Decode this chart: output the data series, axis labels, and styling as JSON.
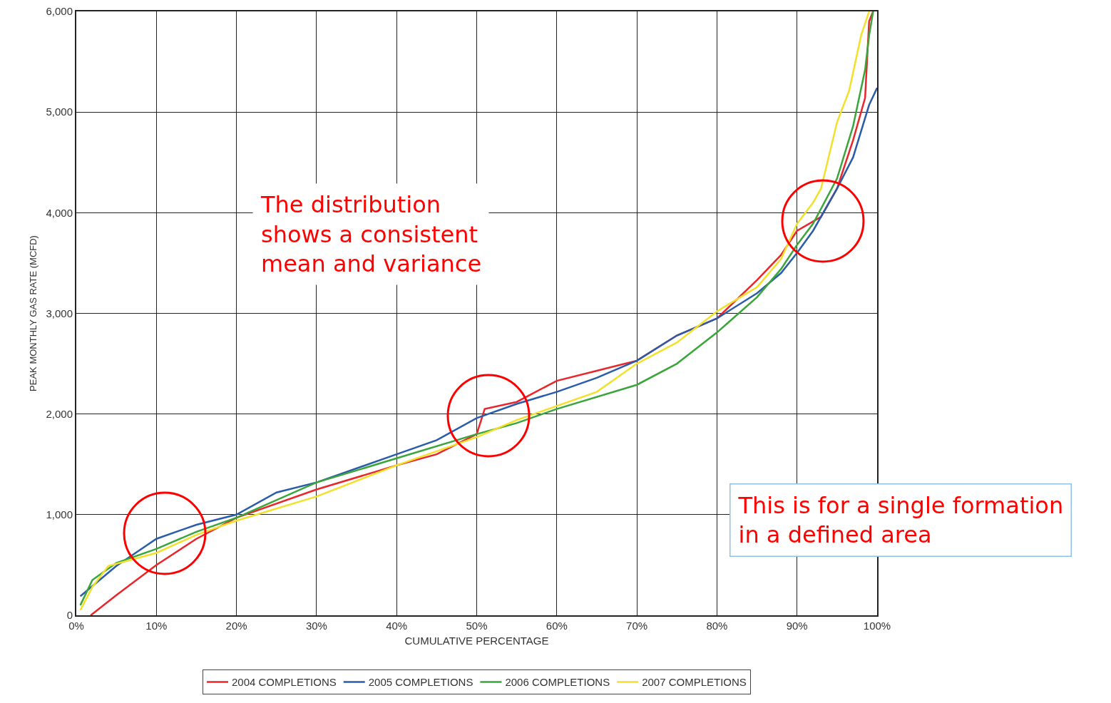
{
  "chart_data": {
    "type": "line",
    "xlabel": "CUMULATIVE PERCENTAGE",
    "ylabel": "PEAK MONTHLY GAS RATE (MCFD)",
    "xlim": [
      0,
      100
    ],
    "xticks": [
      {
        "value": 0,
        "label": "0%"
      },
      {
        "value": 10,
        "label": "10%"
      },
      {
        "value": 20,
        "label": "20%"
      },
      {
        "value": 30,
        "label": "30%"
      },
      {
        "value": 40,
        "label": "40%"
      },
      {
        "value": 50,
        "label": "50%"
      },
      {
        "value": 60,
        "label": "60%"
      },
      {
        "value": 70,
        "label": "70%"
      },
      {
        "value": 80,
        "label": "80%"
      },
      {
        "value": 90,
        "label": "90%"
      },
      {
        "value": 100,
        "label": "100%"
      }
    ],
    "ylim": [
      0,
      6000
    ],
    "yticks": [
      0,
      {
        "value": 1000,
        "label": "1,000"
      },
      {
        "value": 2000,
        "label": "2,000"
      },
      {
        "value": 3000,
        "label": "3,000"
      },
      {
        "value": 4000,
        "label": "4,000"
      },
      {
        "value": 5000,
        "label": "5,000"
      },
      {
        "value": 6000,
        "label": "6,000"
      }
    ],
    "grid": true,
    "legend": "bottom",
    "marker": "none",
    "line_style": "solid",
    "series": [
      {
        "name": "2004 COMPLETIONS",
        "color": "#e8262b",
        "x": [
          1.8,
          5,
          10,
          15,
          20,
          30,
          40,
          45,
          50,
          51,
          55,
          60,
          65,
          70,
          75,
          80,
          85,
          88,
          90,
          93,
          95,
          97,
          98.5,
          99,
          99.5
        ],
        "values": [
          0,
          200,
          500,
          760,
          970,
          1250,
          1490,
          1600,
          1800,
          2050,
          2120,
          2330,
          2430,
          2530,
          2780,
          2950,
          3330,
          3580,
          3820,
          3960,
          4240,
          4720,
          5140,
          5900,
          6000
        ]
      },
      {
        "name": "2005 COMPLETIONS",
        "color": "#2a5caa",
        "x": [
          0.5,
          5,
          10,
          15,
          20,
          25,
          30,
          40,
          45,
          50,
          55,
          60,
          65,
          70,
          75,
          80,
          85,
          88,
          90,
          92,
          95,
          97,
          99,
          100
        ],
        "values": [
          190,
          490,
          760,
          900,
          1000,
          1220,
          1320,
          1600,
          1740,
          1960,
          2100,
          2220,
          2360,
          2530,
          2780,
          2950,
          3200,
          3400,
          3600,
          3820,
          4240,
          4550,
          5070,
          5240
        ]
      },
      {
        "name": "2006 COMPLETIONS",
        "color": "#3aa53a",
        "x": [
          0.5,
          2,
          5,
          10,
          15,
          20,
          30,
          40,
          50,
          55,
          60,
          70,
          75,
          80,
          85,
          88,
          90,
          92,
          95,
          97,
          98.5,
          99,
          99.5
        ],
        "values": [
          100,
          350,
          520,
          660,
          830,
          970,
          1320,
          1560,
          1800,
          1910,
          2050,
          2290,
          2500,
          2810,
          3160,
          3440,
          3680,
          3890,
          4340,
          4860,
          5420,
          5760,
          6000
        ]
      },
      {
        "name": "2007 COMPLETIONS",
        "color": "#f2e02a",
        "x": [
          0.5,
          2,
          4,
          10,
          15,
          20,
          30,
          40,
          50,
          55,
          60,
          65,
          70,
          75,
          80,
          85,
          88,
          90,
          92,
          93,
          95,
          96.5,
          98,
          99
        ],
        "values": [
          50,
          280,
          490,
          620,
          800,
          940,
          1180,
          1490,
          1770,
          1940,
          2080,
          2220,
          2500,
          2710,
          3020,
          3260,
          3540,
          3890,
          4100,
          4240,
          4900,
          5210,
          5760,
          6000
        ]
      }
    ],
    "annotations": [
      "The distribution\nshows a consistent\nmean and variance",
      "This is for a single formation\nin a defined area"
    ]
  }
}
